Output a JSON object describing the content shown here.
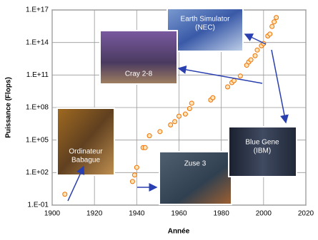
{
  "chart_data": {
    "type": "scatter",
    "x_label": "Année",
    "y_label": "Puissance (Flops)",
    "log_y": true,
    "grid": true,
    "xlim": [
      1900,
      2020
    ],
    "xticks": [
      1900,
      1920,
      1940,
      1960,
      1980,
      2000,
      2020
    ],
    "ylim": [
      0.1,
      1e+17
    ],
    "yticks": [
      {
        "value": 0.1,
        "label": "1.E-01"
      },
      {
        "value": 100,
        "label": "1.E+02"
      },
      {
        "value": 100000,
        "label": "1.E+05"
      },
      {
        "value": 100000000,
        "label": "1.E+08"
      },
      {
        "value": 100000000000,
        "label": "1.E+11"
      },
      {
        "value": 100000000000000,
        "label": "1.E+14"
      },
      {
        "value": 1e+17,
        "label": "1.E+17"
      }
    ],
    "series": [
      {
        "color": "#f07000",
        "x": [
          1906,
          1938,
          1939,
          1940,
          1943,
          1944,
          1946,
          1951,
          1956,
          1958,
          1960,
          1963,
          1965,
          1966,
          1975,
          1976,
          1983,
          1985,
          1986,
          1989,
          1992,
          1993,
          1994,
          1996,
          1997,
          1999,
          2000,
          2002,
          2003,
          2004,
          2005,
          2006
        ],
        "values": [
          1,
          15,
          60,
          300,
          20000,
          20000,
          250000,
          600000,
          2500000,
          5000000,
          16000000,
          25000000,
          80000000,
          250000000,
          500000000,
          800000000,
          8000000000,
          20000000000,
          30000000000,
          80000000000,
          800000000000,
          1600000000000,
          2500000000000,
          6000000000000,
          20000000000000,
          50000000000000,
          80000000000000,
          400000000000000,
          600000000000000,
          3000000000000000,
          8000000000000000,
          20000000000000000
        ]
      }
    ],
    "annotations": [
      {
        "lines": [
          "Earth Simulator",
          "(NEC)"
        ]
      },
      {
        "lines": [
          "Cray 2-8"
        ]
      },
      {
        "lines": [
          "Ordinateur",
          "Babague"
        ]
      },
      {
        "lines": [
          "Zuse 3"
        ]
      },
      {
        "lines": [
          "Blue Gene",
          "(IBM)"
        ]
      }
    ]
  }
}
